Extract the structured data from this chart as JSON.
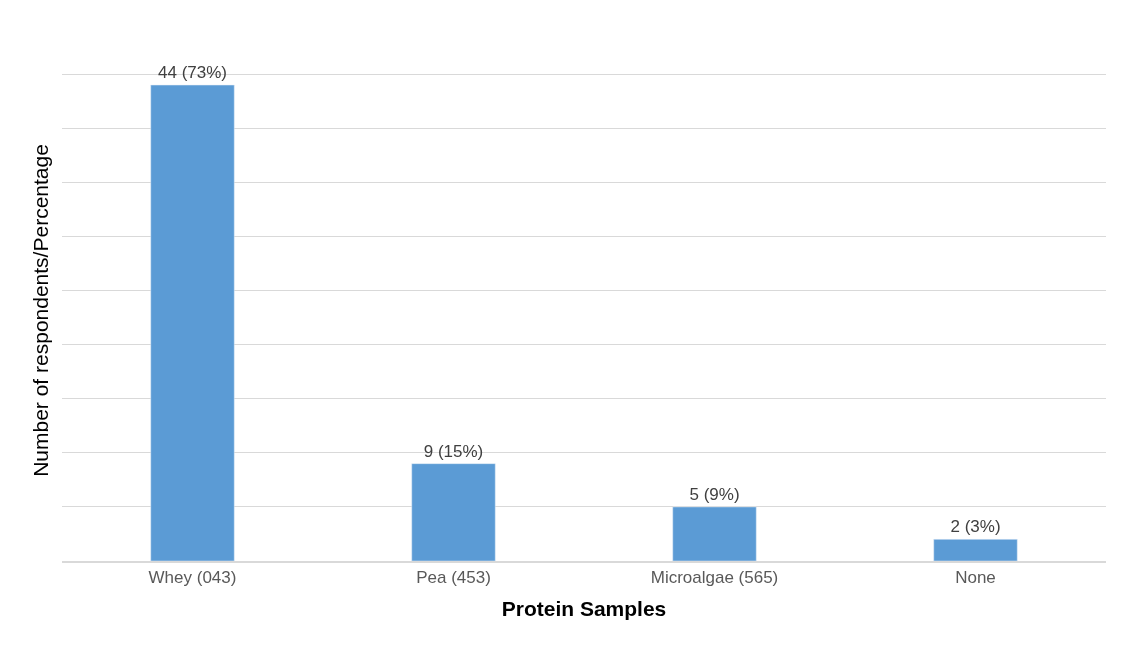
{
  "chart_data": {
    "type": "bar",
    "xlabel": "Protein Samples",
    "ylabel": "Number of respondents/Percentage",
    "categories": [
      "Whey (043)",
      "Pea (453)",
      "Microalgae (565)",
      "None"
    ],
    "values": [
      44,
      9,
      5,
      2
    ],
    "value_labels": [
      "44 (73%)",
      "9 (15%)",
      "5 (9%)",
      "2 (3%)"
    ],
    "color": "#5b9bd5",
    "grid": "y",
    "tick_labels": "x"
  }
}
